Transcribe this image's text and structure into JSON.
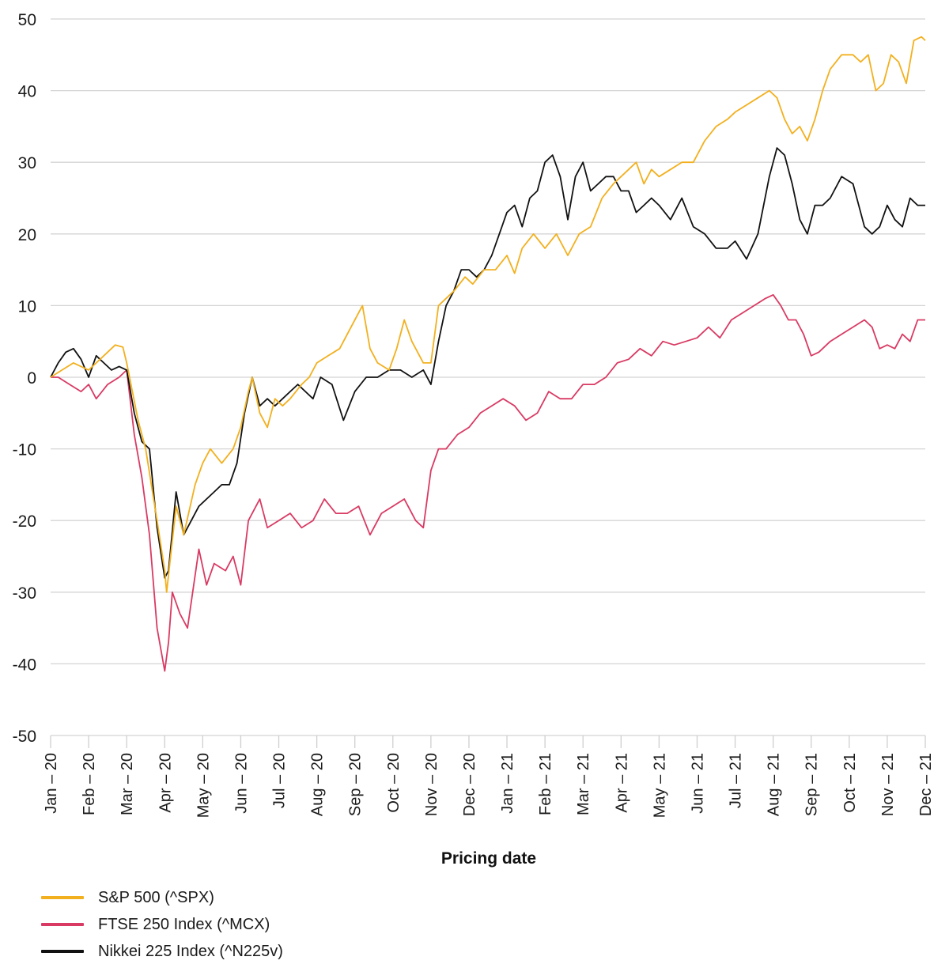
{
  "chart_data": {
    "type": "line",
    "title": "",
    "xlabel": "Pricing date",
    "ylabel": "",
    "ylim": [
      -50,
      50
    ],
    "yticks": [
      "50",
      "40",
      "30",
      "20",
      "10",
      "0",
      "-10",
      "-20",
      "-30",
      "-40",
      "-50"
    ],
    "ytick_values": [
      50,
      40,
      30,
      20,
      10,
      0,
      -10,
      -20,
      -30,
      -40,
      -50
    ],
    "xticks": [
      "Jan – 20",
      "Feb – 20",
      "Mar – 20",
      "Apr – 20",
      "May – 20",
      "Jun – 20",
      "Jul – 20",
      "Aug – 20",
      "Sep – 20",
      "Oct – 20",
      "Nov – 20",
      "Dec – 20",
      "Jan – 21",
      "Feb – 21",
      "Mar – 21",
      "Apr – 21",
      "May – 21",
      "Jun – 21",
      "Jul – 21",
      "Aug – 21",
      "Sep – 21",
      "Oct – 21",
      "Nov – 21",
      "Dec – 21"
    ],
    "x_unit": "months since Jan 2020",
    "xlim": [
      0,
      23
    ],
    "grid": true,
    "legend_position": "bottom-left",
    "series": [
      {
        "name": "S&P 500 (^SPX)",
        "color": "#F2B01E",
        "x": [
          0,
          0.3,
          0.6,
          1.0,
          1.3,
          1.5,
          1.7,
          1.9,
          2.0,
          2.3,
          2.5,
          2.8,
          3.0,
          3.05,
          3.3,
          3.5,
          3.8,
          4.0,
          4.2,
          4.5,
          4.8,
          5.0,
          5.2,
          5.3,
          5.5,
          5.7,
          5.9,
          6.1,
          6.3,
          6.6,
          6.8,
          7.0,
          7.3,
          7.6,
          7.9,
          8.2,
          8.4,
          8.6,
          8.9,
          9.1,
          9.3,
          9.5,
          9.8,
          10.0,
          10.2,
          10.4,
          10.6,
          10.9,
          11.1,
          11.4,
          11.7,
          12.0,
          12.2,
          12.4,
          12.7,
          13.0,
          13.3,
          13.6,
          13.9,
          14.2,
          14.5,
          14.8,
          15.0,
          15.2,
          15.4,
          15.6,
          15.8,
          16.0,
          16.3,
          16.6,
          16.9,
          17.2,
          17.5,
          17.8,
          18.0,
          18.3,
          18.6,
          18.9,
          19.1,
          19.3,
          19.5,
          19.7,
          19.9,
          20.1,
          20.3,
          20.5,
          20.8,
          21.1,
          21.3,
          21.5,
          21.7,
          21.9,
          22.1,
          22.3,
          22.5,
          22.7,
          22.9,
          23.0
        ],
        "values": [
          0,
          1,
          2,
          1,
          2.5,
          3.5,
          4.5,
          4.2,
          2,
          -6,
          -10,
          -20,
          -27,
          -30,
          -18,
          -22,
          -15,
          -12,
          -10,
          -12,
          -10,
          -7,
          -2,
          0,
          -5,
          -7,
          -3,
          -4,
          -3,
          -1,
          0,
          2,
          3,
          4,
          7,
          10,
          4,
          2,
          1,
          4,
          8,
          5,
          2,
          2,
          10,
          11,
          12,
          14,
          13,
          15,
          15,
          17,
          14.5,
          18,
          20,
          18,
          20,
          17,
          20,
          21,
          25,
          27,
          28,
          29,
          30,
          27,
          29,
          28,
          29,
          30,
          30,
          33,
          35,
          36,
          37,
          38,
          39,
          40,
          39,
          36,
          34,
          35,
          33,
          36,
          40,
          43,
          45,
          45,
          44,
          45,
          40,
          41,
          45,
          44,
          41,
          47,
          47.5,
          47
        ]
      },
      {
        "name": "FTSE 250 Index (^MCX)",
        "color": "#D93A63",
        "x": [
          0,
          0.2,
          0.5,
          0.8,
          1.0,
          1.2,
          1.5,
          1.8,
          2.0,
          2.2,
          2.4,
          2.6,
          2.8,
          3.0,
          3.1,
          3.2,
          3.4,
          3.6,
          3.9,
          4.1,
          4.3,
          4.6,
          4.8,
          5.0,
          5.2,
          5.5,
          5.7,
          6.0,
          6.3,
          6.6,
          6.9,
          7.2,
          7.5,
          7.8,
          8.1,
          8.4,
          8.7,
          9.0,
          9.3,
          9.6,
          9.8,
          10.0,
          10.2,
          10.4,
          10.7,
          11.0,
          11.3,
          11.6,
          11.9,
          12.2,
          12.5,
          12.8,
          13.1,
          13.4,
          13.7,
          14.0,
          14.3,
          14.6,
          14.9,
          15.2,
          15.5,
          15.8,
          16.1,
          16.4,
          16.7,
          17.0,
          17.3,
          17.6,
          17.9,
          18.2,
          18.5,
          18.8,
          19.0,
          19.2,
          19.4,
          19.6,
          19.8,
          20.0,
          20.2,
          20.5,
          20.8,
          21.1,
          21.4,
          21.6,
          21.8,
          22.0,
          22.2,
          22.4,
          22.6,
          22.8,
          23.0
        ],
        "values": [
          0,
          0,
          -1,
          -2,
          -1,
          -3,
          -1,
          0,
          1,
          -8,
          -14,
          -22,
          -35,
          -41,
          -37,
          -30,
          -33,
          -35,
          -24,
          -29,
          -26,
          -27,
          -25,
          -29,
          -20,
          -17,
          -21,
          -20,
          -19,
          -21,
          -20,
          -17,
          -19,
          -19,
          -18,
          -22,
          -19,
          -18,
          -17,
          -20,
          -21,
          -13,
          -10,
          -10,
          -8,
          -7,
          -5,
          -4,
          -3,
          -4,
          -6,
          -5,
          -2,
          -3,
          -3,
          -1,
          -1,
          0,
          2,
          2.5,
          4,
          3,
          5,
          4.5,
          5,
          5.5,
          7,
          5.5,
          8,
          9,
          10,
          11,
          11.5,
          10,
          8,
          8,
          6,
          3,
          3.5,
          5,
          6,
          7,
          8,
          7,
          4,
          4.5,
          4,
          6,
          5,
          8,
          8
        ]
      },
      {
        "name": "Nikkei 225 Index (^N225v)",
        "color": "#111111",
        "x": [
          0,
          0.2,
          0.4,
          0.6,
          0.8,
          1.0,
          1.2,
          1.4,
          1.6,
          1.8,
          2.0,
          2.2,
          2.4,
          2.6,
          2.8,
          3.0,
          3.1,
          3.3,
          3.5,
          3.7,
          3.9,
          4.1,
          4.3,
          4.5,
          4.7,
          4.9,
          5.1,
          5.3,
          5.5,
          5.7,
          5.9,
          6.1,
          6.3,
          6.5,
          6.7,
          6.9,
          7.1,
          7.4,
          7.7,
          8.0,
          8.3,
          8.6,
          8.9,
          9.2,
          9.5,
          9.8,
          10.0,
          10.2,
          10.4,
          10.6,
          10.8,
          11.0,
          11.2,
          11.4,
          11.6,
          11.8,
          12.0,
          12.2,
          12.4,
          12.6,
          12.8,
          13.0,
          13.2,
          13.4,
          13.6,
          13.8,
          14.0,
          14.2,
          14.4,
          14.6,
          14.8,
          15.0,
          15.2,
          15.4,
          15.6,
          15.8,
          16.0,
          16.3,
          16.6,
          16.9,
          17.2,
          17.5,
          17.8,
          18.0,
          18.3,
          18.6,
          18.9,
          19.1,
          19.3,
          19.5,
          19.7,
          19.9,
          20.1,
          20.3,
          20.5,
          20.8,
          21.1,
          21.4,
          21.6,
          21.8,
          22.0,
          22.2,
          22.4,
          22.6,
          22.8,
          23.0
        ],
        "values": [
          0,
          2,
          3.5,
          4,
          2.5,
          0,
          3,
          2,
          1,
          1.5,
          1,
          -5,
          -9,
          -10,
          -21,
          -28,
          -27,
          -16,
          -22,
          -20,
          -18,
          -17,
          -16,
          -15,
          -15,
          -12,
          -5,
          0,
          -4,
          -3,
          -4,
          -3,
          -2,
          -1,
          -2,
          -3,
          0,
          -1,
          -6,
          -2,
          0,
          0,
          1,
          1,
          0,
          1,
          -1,
          5,
          10,
          12,
          15,
          15,
          14,
          15,
          17,
          20,
          23,
          24,
          21,
          25,
          26,
          30,
          31,
          28,
          22,
          28,
          30,
          26,
          27,
          28,
          28,
          26,
          26,
          23,
          24,
          25,
          24,
          22,
          25,
          21,
          20,
          18,
          18,
          19,
          16.5,
          20,
          28,
          32,
          31,
          27,
          22,
          20,
          24,
          24,
          25,
          28,
          27,
          21,
          20,
          21,
          24,
          22,
          21,
          25,
          24,
          24
        ]
      }
    ]
  },
  "legend": {
    "items": [
      {
        "label": "S&P 500 (^SPX)",
        "color": "#F2B01E"
      },
      {
        "label": "FTSE 250 Index (^MCX)",
        "color": "#D93A63"
      },
      {
        "label": "Nikkei 225 Index (^N225v)",
        "color": "#111111"
      }
    ]
  }
}
